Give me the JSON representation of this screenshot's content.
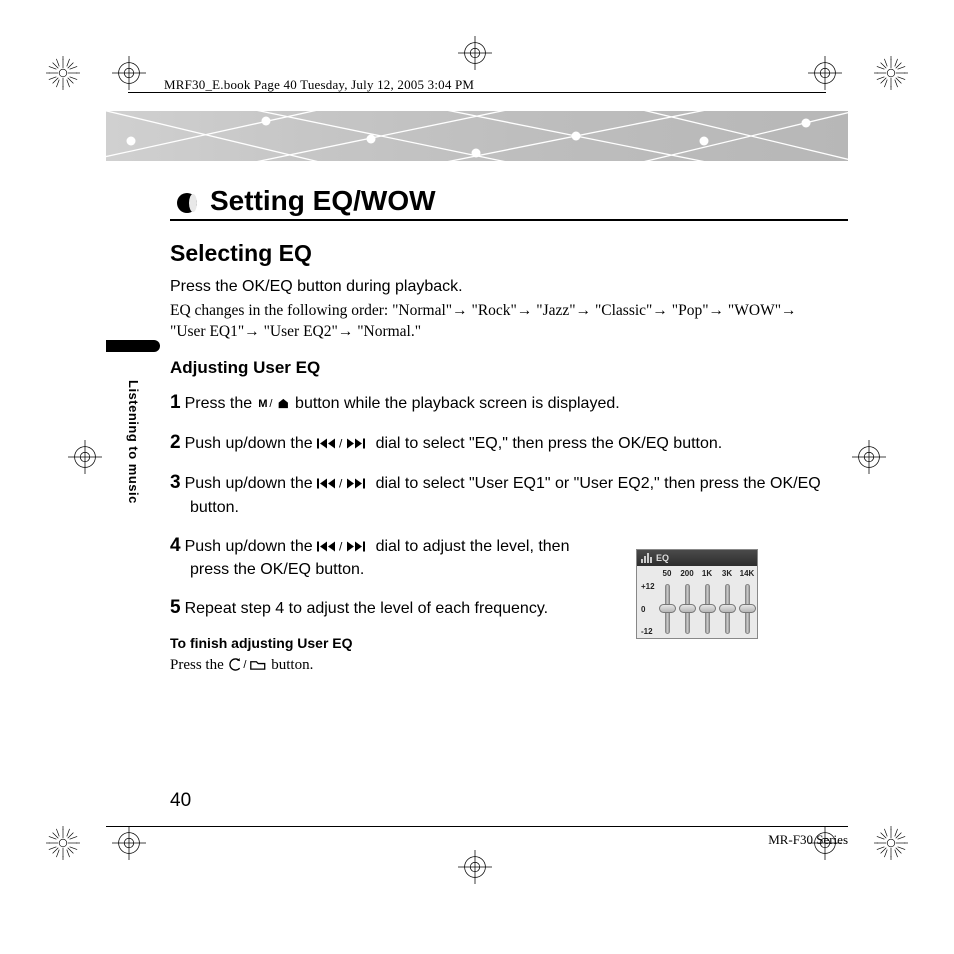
{
  "header_line": "MRF30_E.book  Page 40  Tuesday, July 12, 2005  3:04 PM",
  "chapter_title": "Setting EQ/WOW",
  "h2": "Selecting EQ",
  "intro": "Press the OK/EQ button during playback.",
  "eq_order_prefix": "EQ changes in the following order: ",
  "eq_sequence": [
    "\"Normal\"",
    "\"Rock\"",
    "\"Jazz\"",
    "\"Classic\"",
    "\"Pop\"",
    "\"WOW\"",
    "\"User EQ1\"",
    "\"User EQ2\"",
    "\"Normal.\""
  ],
  "side_label": "Listening to music",
  "h3": "Adjusting User EQ",
  "steps": [
    {
      "n": "1",
      "pre": "Press the ",
      "icon": "menu-home",
      "post": " button while the playback screen is displayed."
    },
    {
      "n": "2",
      "pre": "Push up/down the ",
      "icon": "prev-next",
      "post": " dial to select \"EQ,\" then press the OK/EQ button."
    },
    {
      "n": "3",
      "pre": "Push up/down the ",
      "icon": "prev-next",
      "post": " dial to select \"User EQ1\" or \"User EQ2,\" then press the OK/EQ button."
    },
    {
      "n": "4",
      "pre": "Push up/down the ",
      "icon": "prev-next",
      "post": " dial to adjust the level, then press the OK/EQ button."
    },
    {
      "n": "5",
      "pre": "Repeat step 4 to adjust the level of each frequency.",
      "icon": null,
      "post": ""
    }
  ],
  "h4": "To finish adjusting User EQ",
  "finish_prefix": "Press the ",
  "finish_suffix": " button.",
  "eq_widget": {
    "title": "EQ",
    "freqs": [
      "50",
      "200",
      "1K",
      "3K",
      "14K"
    ],
    "scale_top": "+12",
    "scale_mid": "0",
    "scale_bot": "-12",
    "knob_levels": [
      0,
      0,
      0,
      0,
      0
    ]
  },
  "page_number": "40",
  "series": "MR-F30 Series",
  "colors": {
    "band_from": "#d0d0d0",
    "band_to": "#b7b7b7",
    "rule": "#000000"
  }
}
